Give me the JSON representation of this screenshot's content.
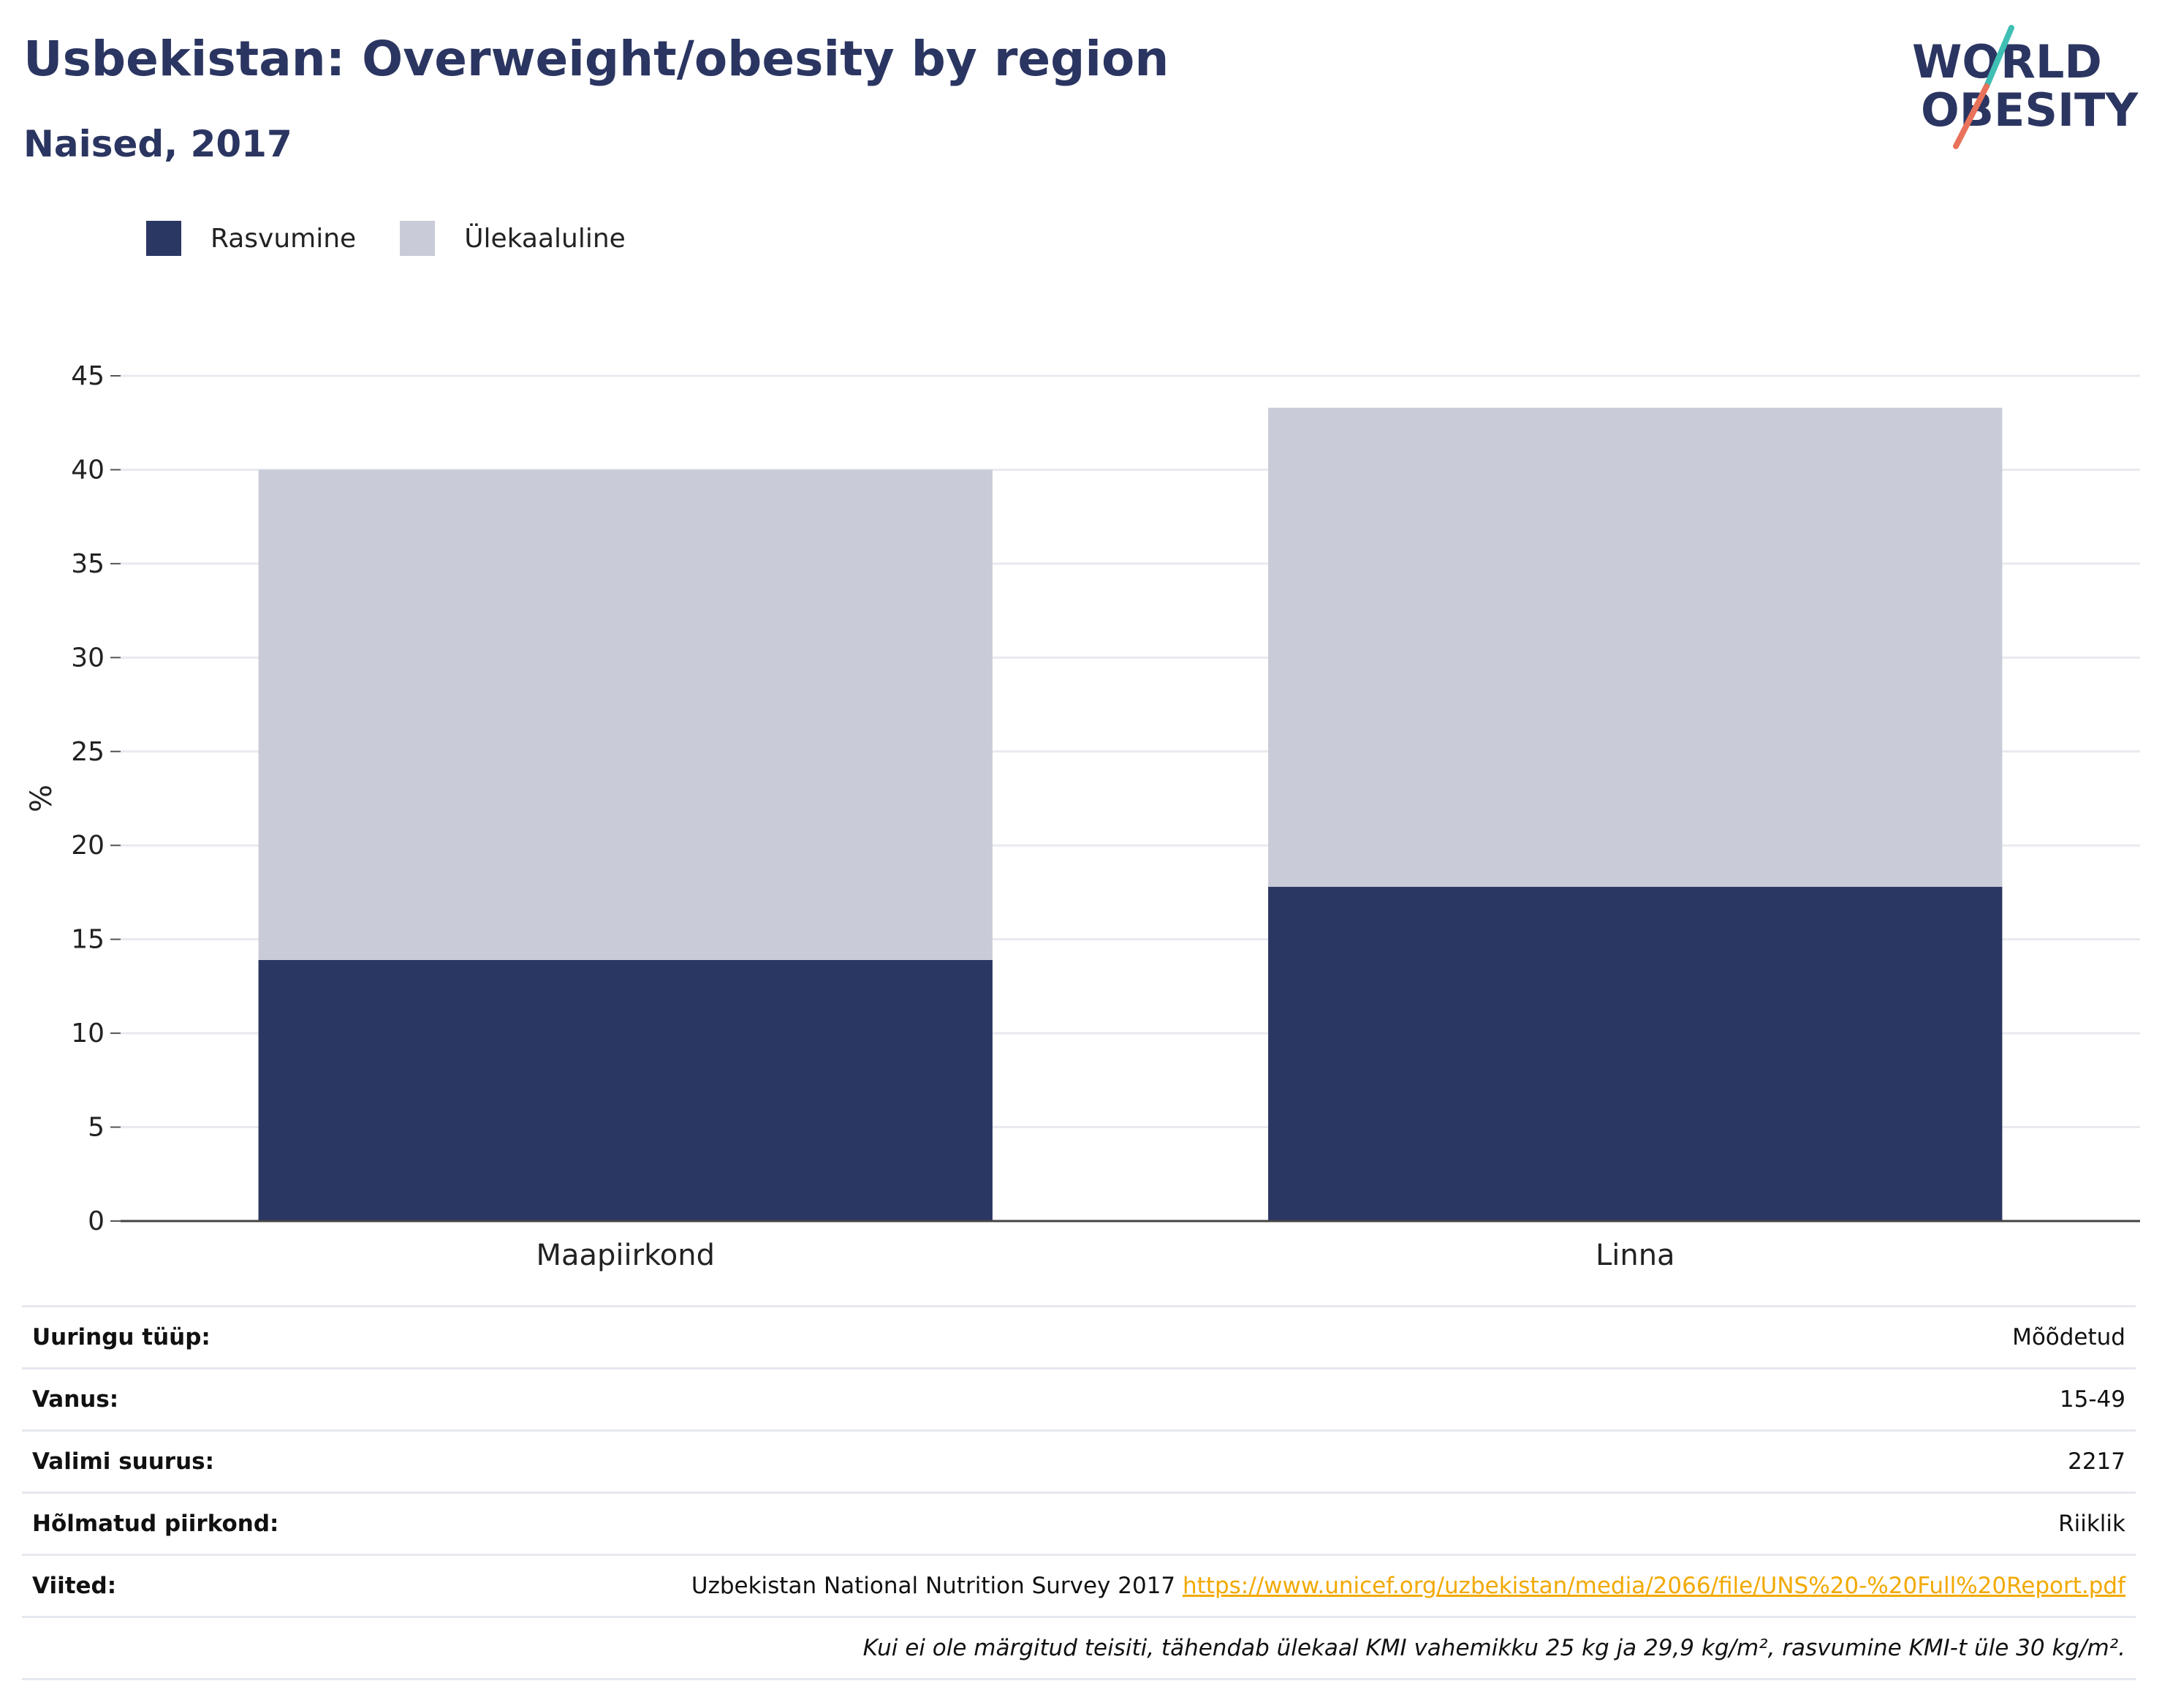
{
  "header": {
    "title": "Usbekistan: Overweight/obesity by region",
    "subtitle": "Naised, 2017"
  },
  "logo": {
    "line1": "WORLD",
    "line2": "OBESITY"
  },
  "colors": {
    "obesity": "#2b3763",
    "overweight": "#c9ccd8",
    "title": "#2b3561",
    "link": "#f2a900"
  },
  "legend": [
    {
      "label": "Rasvumine",
      "color": "#2b3763"
    },
    {
      "label": "Ülekaaluline",
      "color": "#c9ccd8"
    }
  ],
  "chart_data": {
    "type": "bar",
    "stacked": true,
    "categories": [
      "Maapiirkond",
      "Linna"
    ],
    "series": [
      {
        "name": "Rasvumine",
        "values": [
          13.9,
          17.8
        ]
      },
      {
        "name": "Ülekaaluline",
        "values": [
          26.1,
          25.5
        ]
      }
    ],
    "ylabel": "%",
    "ylim": [
      0,
      45
    ],
    "yticks": [
      0,
      5,
      10,
      15,
      20,
      25,
      30,
      35,
      40,
      45
    ],
    "grid": true,
    "legend_position": "top-left"
  },
  "info": {
    "survey_type": {
      "label": "Uuringu tüüp:",
      "value": "Mõõdetud"
    },
    "age": {
      "label": "Vanus:",
      "value": "15-49"
    },
    "sample_size": {
      "label": "Valimi suurus:",
      "value": "2217"
    },
    "area": {
      "label": "Hõlmatud piirkond:",
      "value": "Riiklik"
    },
    "references": {
      "label": "Viited:",
      "text": "Uzbekistan National Nutrition Survey 2017",
      "link": "https://www.unicef.org/uzbekistan/media/2066/file/UNS%20-%20Full%20Report.pdf"
    },
    "note": "Kui ei ole märgitud teisiti, tähendab ülekaal KMI vahemikku 25 kg ja 29,9 kg/m², rasvumine KMI-t üle 30 kg/m²."
  }
}
